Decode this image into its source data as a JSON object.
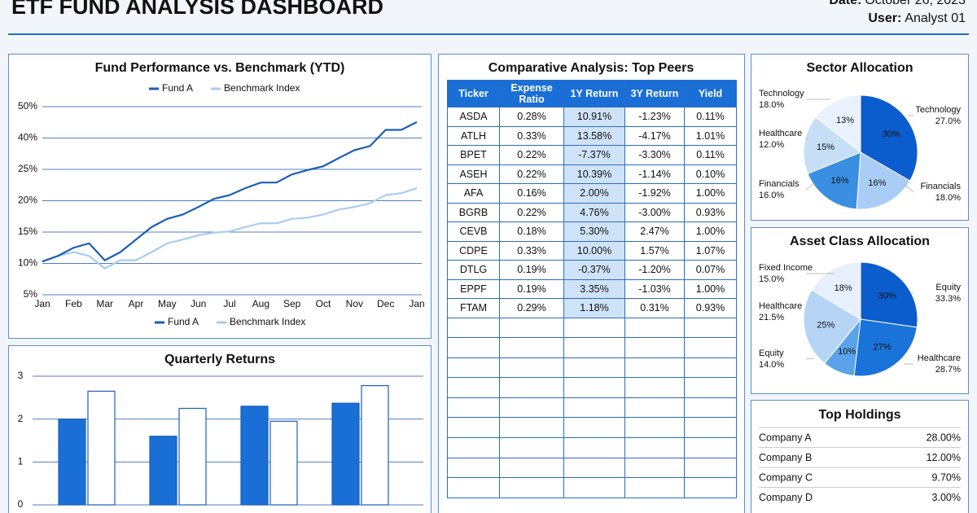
{
  "header": {
    "title": "ETF FUND ANALYSIS DASHBOARD",
    "date_label": "Date:",
    "date": "October 26, 2023",
    "user_label": "User:",
    "user": "Analyst 01"
  },
  "chart_data": [
    {
      "type": "line",
      "title": "Fund Performance vs. Benchmark (YTD)",
      "x": [
        0,
        0.5,
        1,
        1.5,
        2,
        2.5,
        3,
        3.5,
        4,
        4.5,
        5,
        5.5,
        6,
        6.5,
        7,
        7.5,
        8,
        8.5,
        9,
        9.5,
        10,
        10.5,
        11,
        11.5,
        12
      ],
      "series": [
        {
          "name": "Fund A",
          "color": "#1a5fb4",
          "values": [
            10.3,
            11.2,
            12.5,
            13.2,
            10.5,
            11.8,
            13.8,
            15.8,
            17.1,
            17.8,
            19.0,
            20.3,
            20.9,
            22.0,
            22.9,
            22.9,
            24.2,
            24.9,
            26.5,
            30.4,
            34.2,
            36.2,
            42.6,
            42.6,
            45.1
          ]
        },
        {
          "name": "Benchmark Index",
          "color": "#a9cdee",
          "values": [
            10.3,
            11.2,
            11.8,
            11.2,
            9.2,
            10.5,
            10.5,
            11.8,
            13.2,
            13.8,
            14.5,
            14.9,
            15.1,
            15.8,
            16.4,
            16.4,
            17.1,
            17.3,
            17.8,
            18.6,
            19.0,
            19.6,
            20.9,
            21.2,
            22.0
          ]
        }
      ],
      "xlim": [
        0,
        12
      ],
      "xticks": [
        {
          "value": 0,
          "label": "Jan"
        },
        {
          "value": 1,
          "label": "Feb"
        },
        {
          "value": 2,
          "label": "Mar"
        },
        {
          "value": 3,
          "label": "Apr"
        },
        {
          "value": 4,
          "label": "May"
        },
        {
          "value": 5,
          "label": "Jun"
        },
        {
          "value": 6,
          "label": "Jul"
        },
        {
          "value": 7,
          "label": "Aug"
        },
        {
          "value": 8,
          "label": "Sep"
        },
        {
          "value": 9,
          "label": "Oct"
        },
        {
          "value": 10,
          "label": "Nov"
        },
        {
          "value": 11,
          "label": "Dec"
        },
        {
          "value": 12,
          "label": "Jan"
        }
      ],
      "ylim": [
        5,
        50
      ],
      "yticks": [
        {
          "value": 5,
          "label": "5%"
        },
        {
          "value": 10,
          "label": "10%"
        },
        {
          "value": 15,
          "label": "15%"
        },
        {
          "value": 20,
          "label": "20%"
        },
        {
          "value": 25,
          "label": "25%"
        },
        {
          "value": 40,
          "label": "40%"
        },
        {
          "value": 50,
          "label": "50%"
        }
      ],
      "grid": true
    },
    {
      "type": "bar",
      "title": "Quarterly Returns",
      "categories": [
        null,
        null,
        null,
        null
      ],
      "series": [
        {
          "color": "#1a6fd6",
          "values": [
            2.0,
            1.6,
            2.3,
            2.37
          ]
        },
        {
          "color": "#ffffff",
          "values": [
            2.65,
            2.25,
            1.95,
            2.78
          ]
        }
      ],
      "ylim": [
        0,
        3
      ],
      "yticks": [
        0,
        1,
        2,
        3
      ],
      "grid": true
    },
    {
      "type": "pie",
      "title": "Sector Allocation",
      "values": [
        30,
        16,
        16,
        15,
        13
      ],
      "value_labels": [
        "30%",
        "16%",
        "16%",
        "15%",
        "13%"
      ],
      "colors": [
        "#0b5ccc",
        "#a9cdf4",
        "#3a8fe3",
        "#c6def6",
        "#e9f2fc"
      ],
      "annotations": [
        {
          "name": "Technology",
          "text": "18.0%"
        },
        {
          "name": "Healthcare",
          "text": "12.0%"
        },
        {
          "name": "Financials",
          "text": "16.0%"
        },
        {
          "name": "Technology",
          "text": "27.0%"
        },
        {
          "name": "Financials",
          "text": "18.0%"
        }
      ]
    },
    {
      "type": "pie",
      "title": "Asset Class Allocation",
      "values": [
        30,
        27,
        10,
        25,
        18
      ],
      "value_labels": [
        "30%",
        "27%",
        "10%",
        "25%",
        "18%"
      ],
      "colors": [
        "#0b5ccc",
        "#1a73d9",
        "#5aa3ea",
        "#b6d5f5",
        "#e6effb"
      ],
      "annotations": [
        {
          "name": "Fixed Income",
          "text": "15.0%"
        },
        {
          "name": "Healthcare",
          "text": "21.5%"
        },
        {
          "name": "Equity",
          "text": "14.0%"
        },
        {
          "name": "Equity",
          "text": "33.3%"
        },
        {
          "name": "Healthcare",
          "text": "28.7%"
        }
      ]
    }
  ],
  "peers_table": {
    "title": "Comparative Analysis: Top Peers",
    "columns": [
      "Ticker",
      "Expense Ratio",
      "1Y Return",
      "3Y Return",
      "Yield"
    ],
    "rows": [
      [
        "ASDA",
        "0.28%",
        "10.91%",
        "-1.23%",
        "0.11%"
      ],
      [
        "ATLH",
        "0.33%",
        "13.58%",
        "-4.17%",
        "1.01%"
      ],
      [
        "BPET",
        "0.22%",
        "-7.37%",
        "-3.30%",
        "0.11%"
      ],
      [
        "ASEH",
        "0.22%",
        "10.39%",
        "-1.14%",
        "0.10%"
      ],
      [
        "AFA",
        "0.16%",
        "2.00%",
        "-1.92%",
        "1.00%"
      ],
      [
        "BGRB",
        "0.22%",
        "4.76%",
        "-3.00%",
        "0.93%"
      ],
      [
        "CEVB",
        "0.18%",
        "5.30%",
        "2.47%",
        "1.00%"
      ],
      [
        "CDPE",
        "0.33%",
        "10.00%",
        "1.57%",
        "1.07%"
      ],
      [
        "DTLG",
        "0.19%",
        "-0.37%",
        "-1.20%",
        "0.07%"
      ],
      [
        "EPPF",
        "0.19%",
        "3.35%",
        "-1.03%",
        "1.00%"
      ],
      [
        "FTAM",
        "0.29%",
        "1.18%",
        "0.31%",
        "0.93%"
      ]
    ]
  },
  "top_holdings": {
    "title": "Top Holdings",
    "rows": [
      [
        "Company A",
        "28.00%"
      ],
      [
        "Company B",
        "12.00%"
      ],
      [
        "Company C",
        "9.70%"
      ],
      [
        "Company D",
        "3.00%"
      ]
    ]
  }
}
